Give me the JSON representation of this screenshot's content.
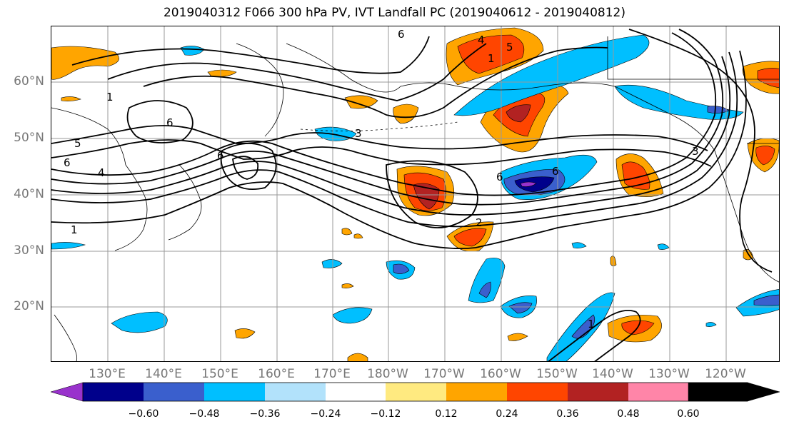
{
  "title": "2019040312 F066 300 hPa PV, IVT Landfall PC (2019040612 - 2019040812)",
  "lat_labels": [
    "60°N",
    "50°N",
    "40°N",
    "30°N",
    "20°N"
  ],
  "lon_labels": [
    "130°E",
    "140°E",
    "150°E",
    "160°E",
    "170°E",
    "180°W",
    "170°W",
    "160°W",
    "150°W",
    "140°W",
    "130°W",
    "120°W"
  ],
  "contour_labels": [
    "1",
    "5",
    "6",
    "4",
    "6",
    "6",
    "1",
    "1",
    "6",
    "6",
    "4",
    "5",
    "3",
    "3",
    "6",
    "2",
    "1"
  ],
  "colorbar": {
    "ticks": [
      "−0.60",
      "−0.48",
      "−0.36",
      "−0.24",
      "−0.12",
      "0.12",
      "0.24",
      "0.36",
      "0.48",
      "0.60"
    ],
    "colors": [
      "#9932cc",
      "#00008b",
      "#3a5fcd",
      "#00bfff",
      "#b2e2fb",
      "#ffffff",
      "#ffea80",
      "#ffa500",
      "#ff4500",
      "#b22222",
      "#ff85a8"
    ]
  }
}
